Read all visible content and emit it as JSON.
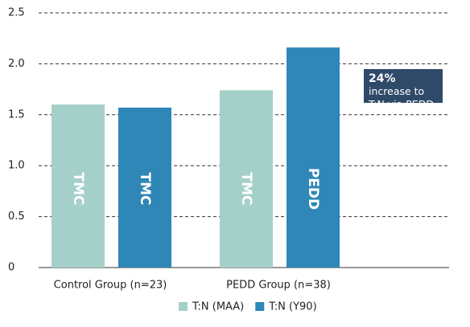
{
  "chart_data": {
    "type": "bar",
    "categories": [
      "Control Group (n=23)",
      "PEDD Group (n=38)"
    ],
    "series": [
      {
        "name": "T:N (MAA)",
        "color": "#a5d0c9",
        "values": [
          1.6,
          1.74
        ],
        "bar_labels": [
          "TMC",
          "TMC"
        ]
      },
      {
        "name": "T:N (Y90)",
        "color": "#2f87b8",
        "values": [
          1.57,
          2.16
        ],
        "bar_labels": [
          "TMC",
          "PEDD"
        ]
      }
    ],
    "ylim": [
      0,
      2.5
    ],
    "yticks": [
      0,
      0.5,
      {
        "value": 1,
        "label": "1.0"
      },
      1.5,
      {
        "value": 2,
        "label": "2.0"
      },
      2.5
    ],
    "grid": true,
    "legend": "bottom",
    "annotation": {
      "bold": "24%",
      "text": "increase to T:N via PEDD"
    }
  }
}
